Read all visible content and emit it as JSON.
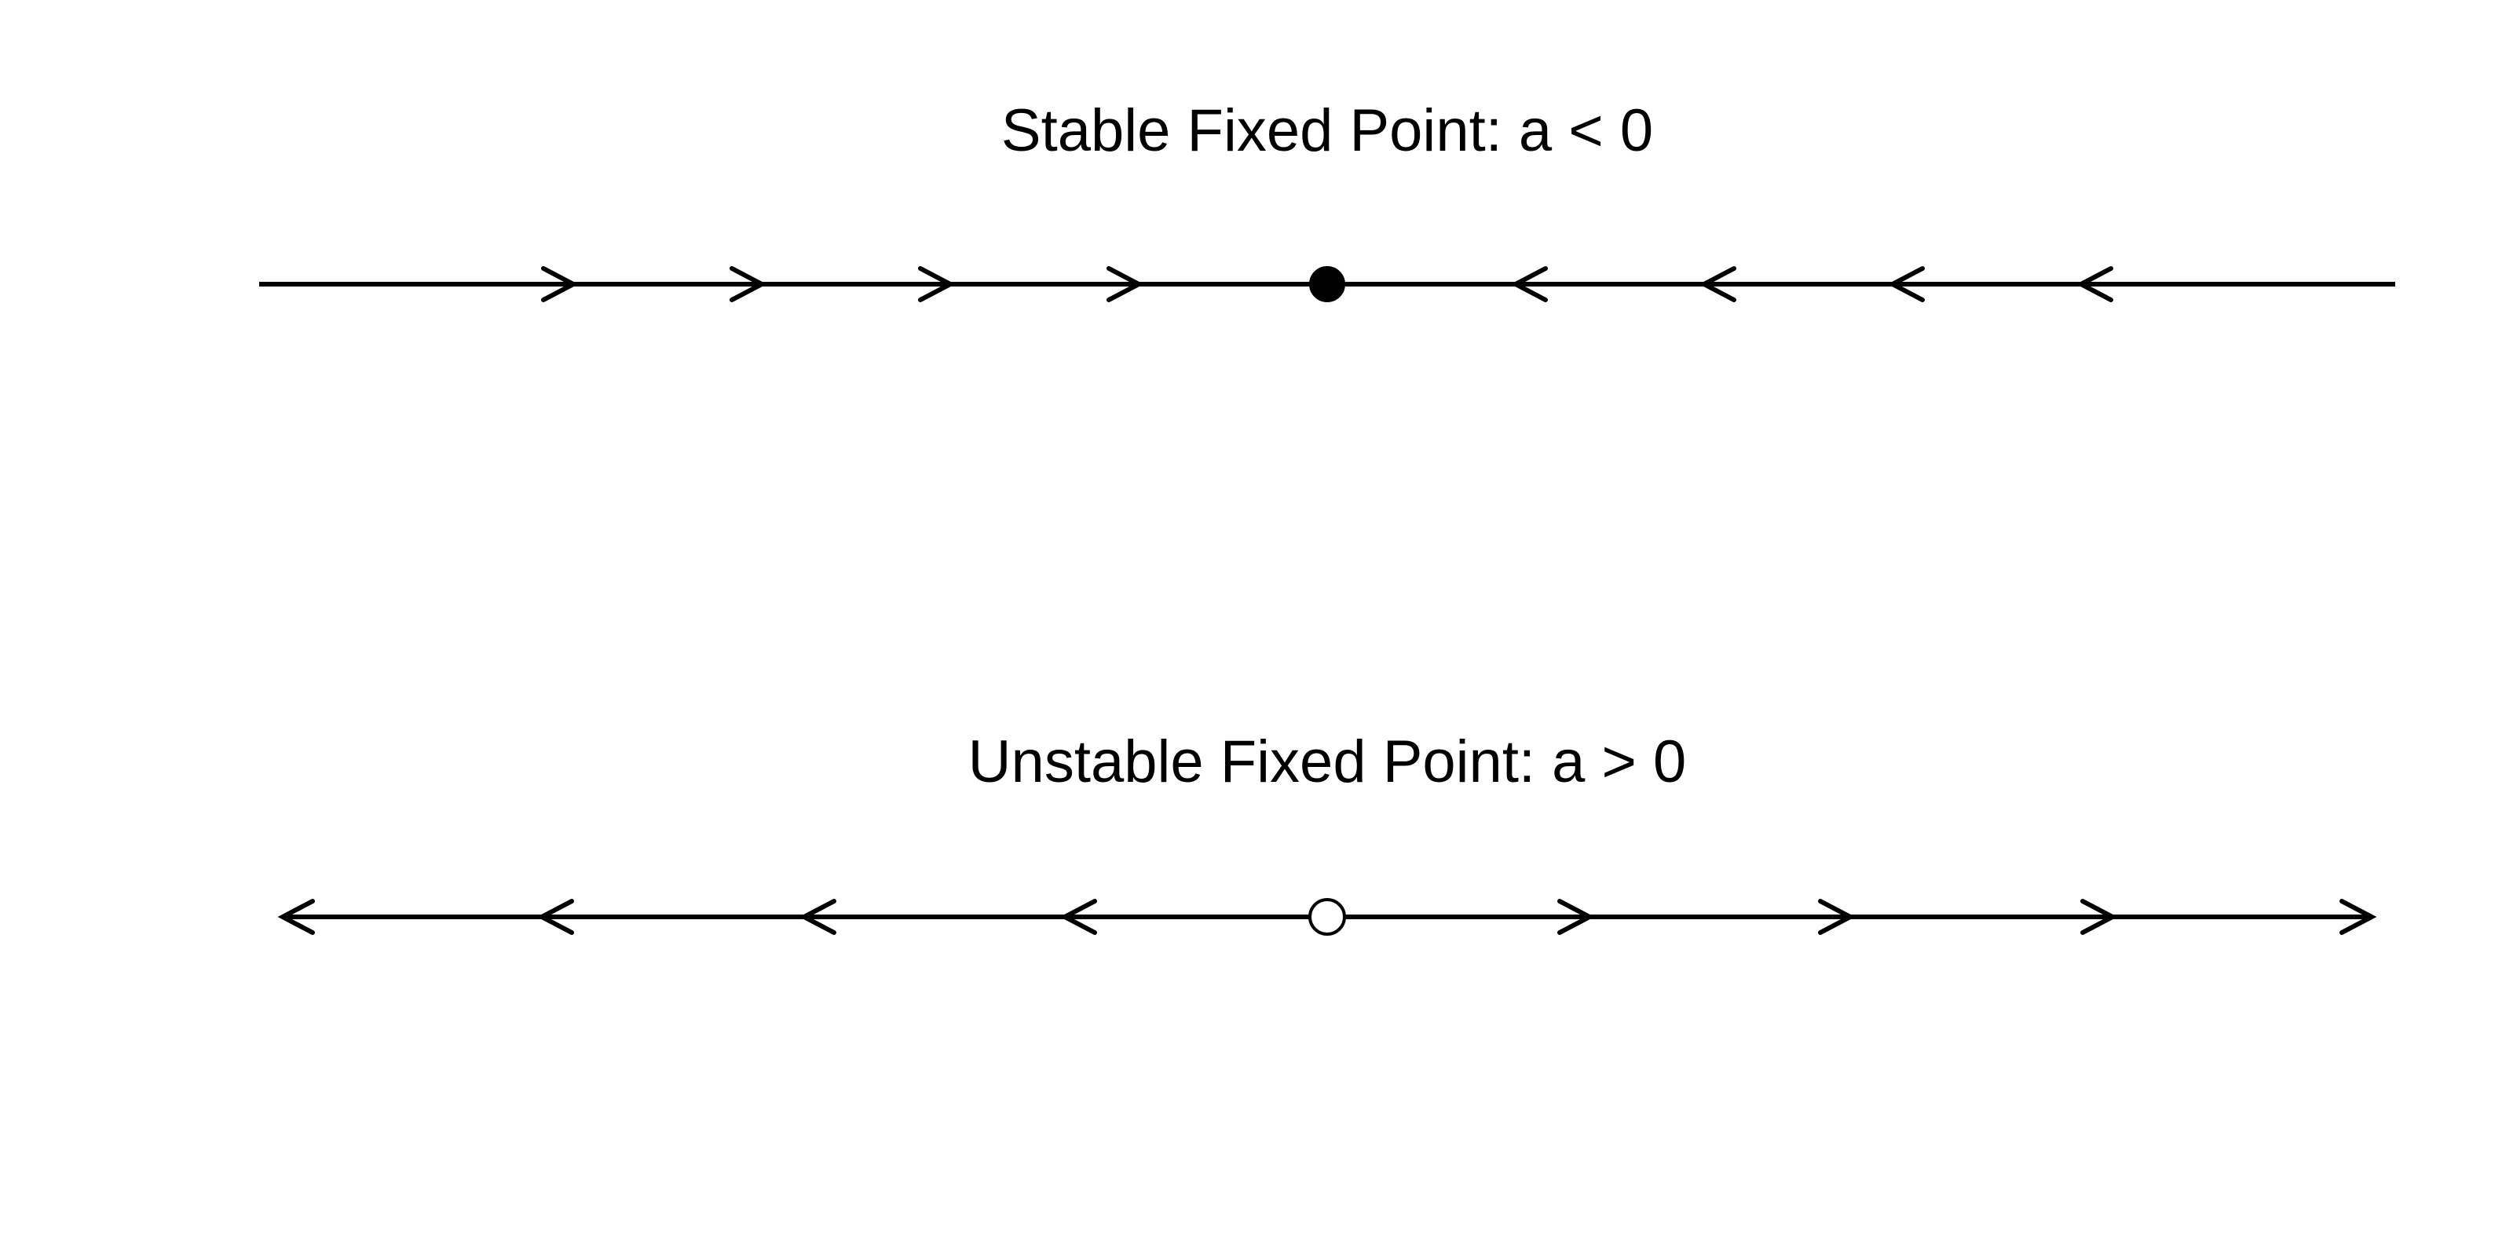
{
  "panels": [
    {
      "id": "stable",
      "title": "Stable Fixed Point: a < 0",
      "fixed_point": {
        "kind": "stable",
        "fill": "filled"
      },
      "flow": "toward-point"
    },
    {
      "id": "unstable",
      "title": "Unstable Fixed Point: a > 0",
      "fixed_point": {
        "kind": "unstable",
        "fill": "open"
      },
      "flow": "away-from-point"
    }
  ],
  "colors": {
    "ink": "#000000",
    "background": "#ffffff"
  }
}
